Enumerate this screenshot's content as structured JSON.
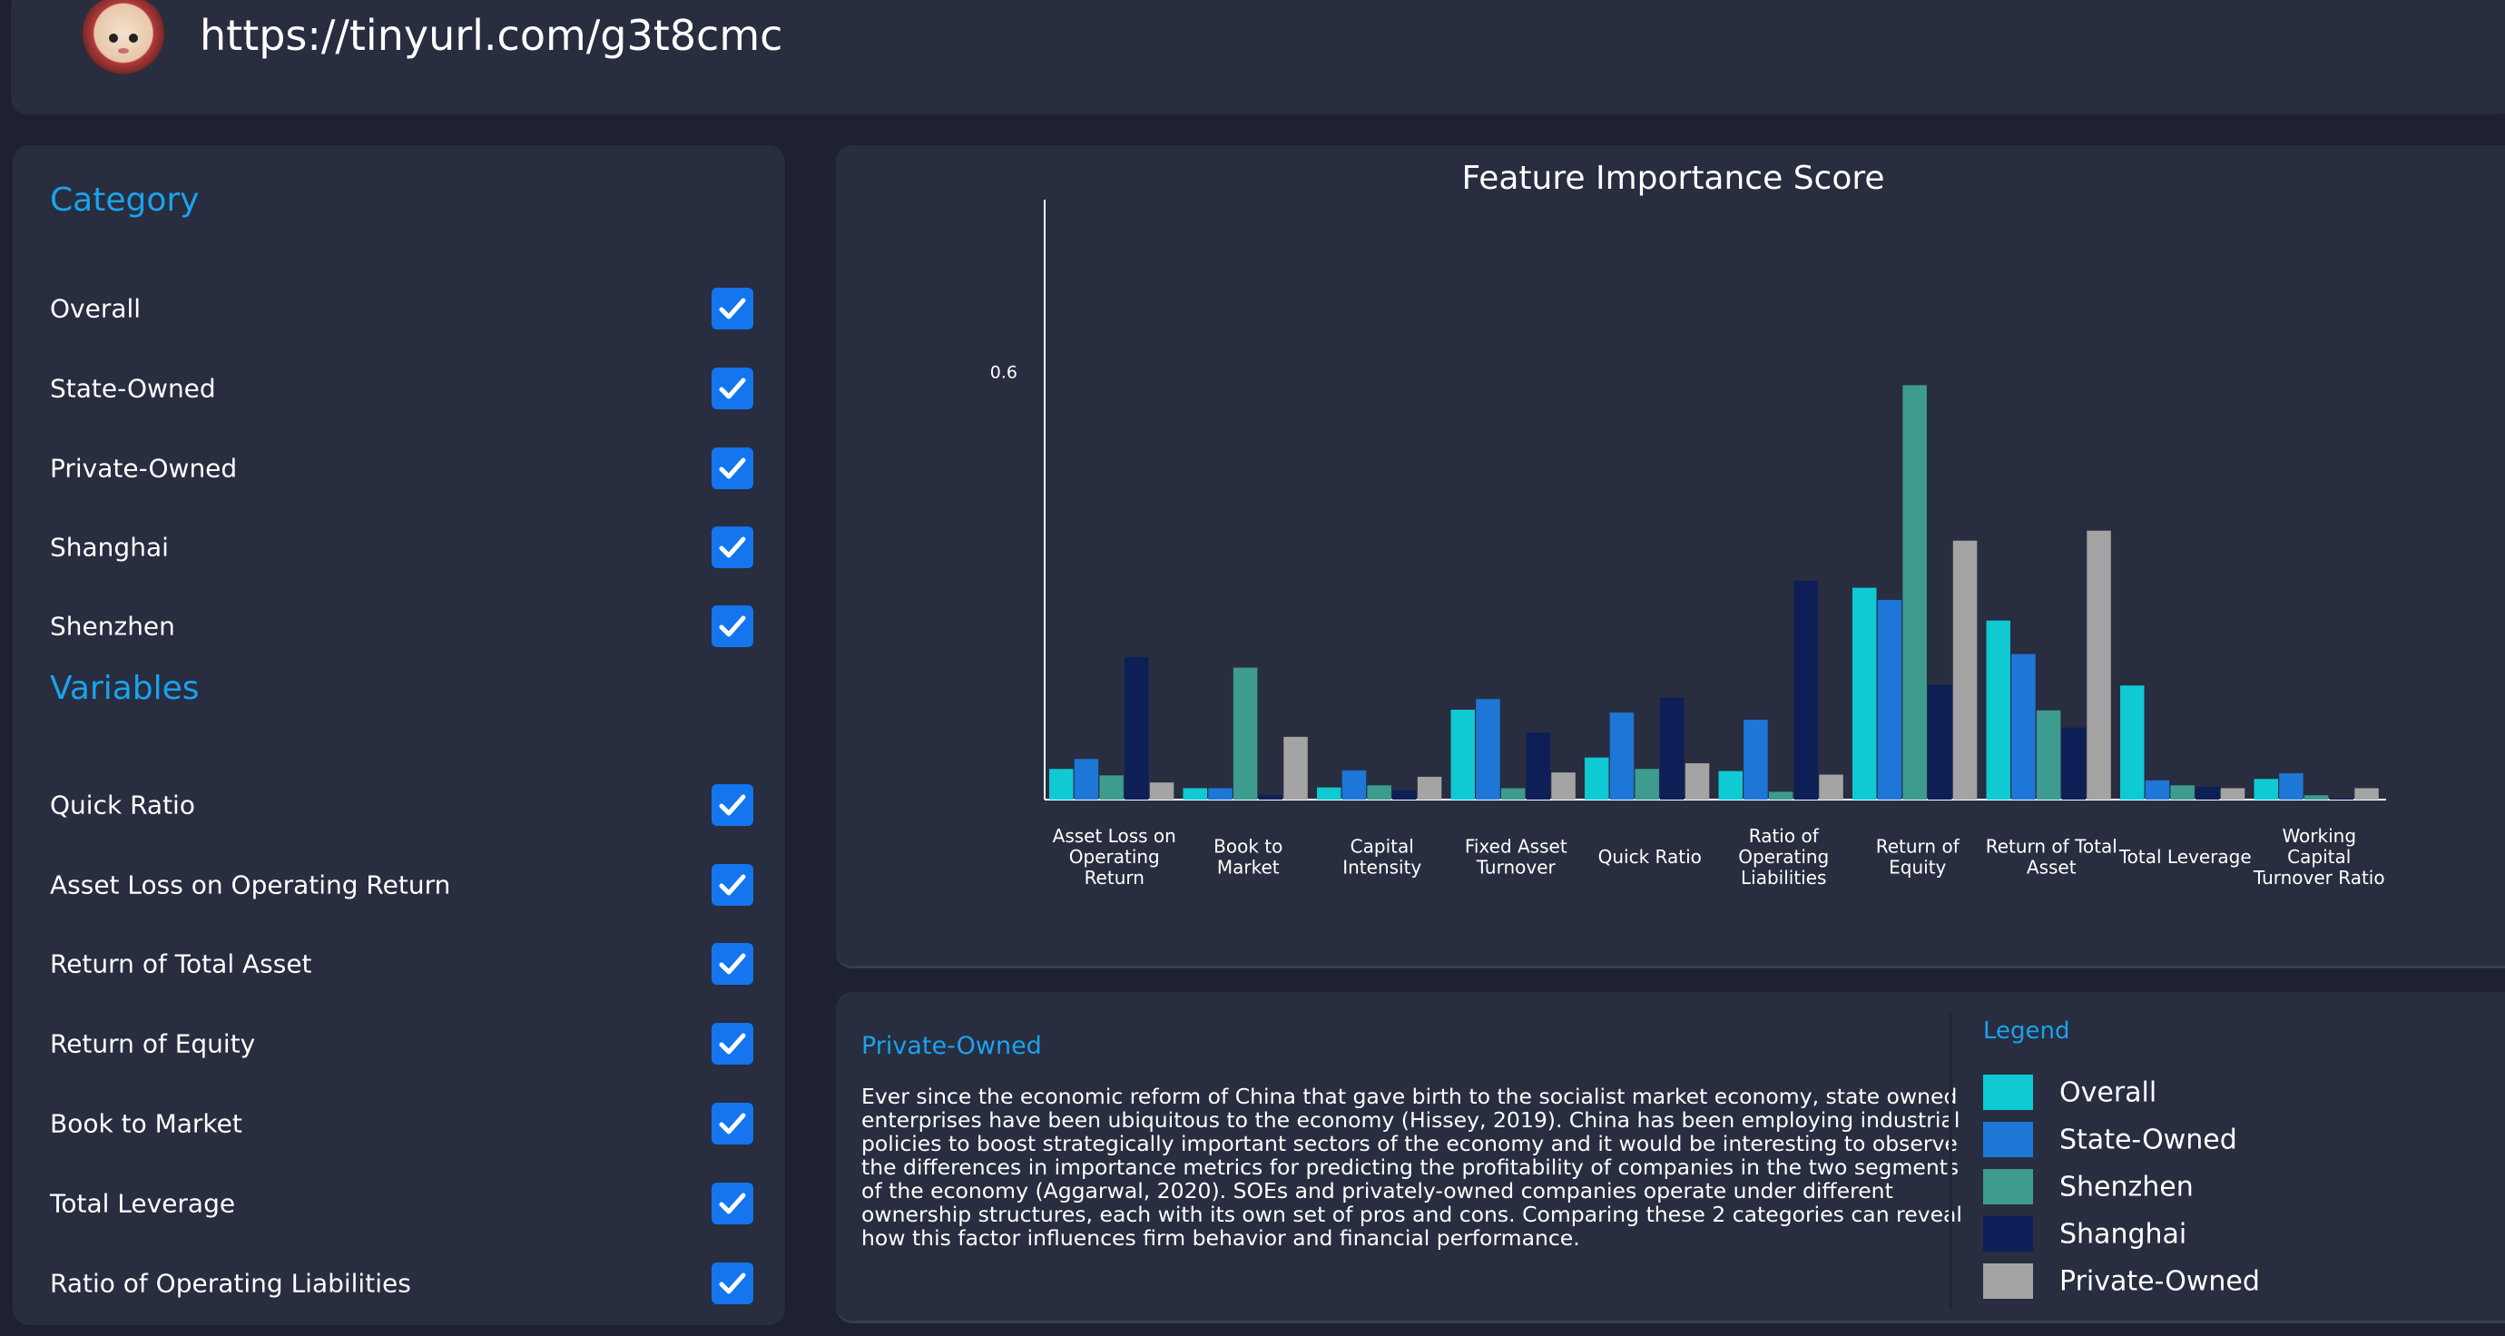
{
  "header": {
    "url": "https://tinyurl.com/g3t8cmc"
  },
  "sidebar": {
    "category_heading": "Category",
    "categories": [
      {
        "label": "Overall",
        "checked": true
      },
      {
        "label": "State-Owned",
        "checked": true
      },
      {
        "label": "Private-Owned",
        "checked": true
      },
      {
        "label": "Shanghai",
        "checked": true
      },
      {
        "label": "Shenzhen",
        "checked": true
      }
    ],
    "variables_heading": "Variables",
    "variables": [
      {
        "label": "Quick Ratio",
        "checked": true
      },
      {
        "label": "Asset Loss on Operating Return",
        "checked": true
      },
      {
        "label": "Return of Total Asset",
        "checked": true
      },
      {
        "label": "Return of Equity",
        "checked": true
      },
      {
        "label": "Book to Market",
        "checked": true
      },
      {
        "label": "Total Leverage",
        "checked": true
      },
      {
        "label": "Ratio of Operating Liabilities",
        "checked": true
      }
    ]
  },
  "colors": {
    "accent": "#1aa3ec",
    "checkbox": "#1475ef",
    "panel": "#282d40",
    "background": "#1e2230"
  },
  "chart_data": {
    "type": "bar",
    "title": "Feature Importance Score",
    "ytick_labels": [
      "0.6"
    ],
    "ylim": [
      0,
      0.64
    ],
    "categories": [
      [
        "Asset Loss on",
        "Operating",
        "Return"
      ],
      [
        "Book to",
        "Market"
      ],
      [
        "Capital",
        "Intensity"
      ],
      [
        "Fixed Asset",
        "Turnover"
      ],
      [
        "Quick Ratio"
      ],
      [
        "Ratio of",
        "Operating",
        "Liabilities"
      ],
      [
        "Return of",
        "Equity"
      ],
      [
        "Return of Total",
        "Asset"
      ],
      [
        "Total Leverage"
      ],
      [
        "Working",
        "Capital",
        "Turnover Ratio"
      ]
    ],
    "series": [
      {
        "name": "Overall",
        "color": "#0fcad2",
        "values": [
          0.043,
          0.016,
          0.017,
          0.126,
          0.059,
          0.04,
          0.297,
          0.251,
          0.16,
          0.029
        ]
      },
      {
        "name": "State-Owned",
        "color": "#1e76d6",
        "values": [
          0.057,
          0.016,
          0.041,
          0.141,
          0.122,
          0.112,
          0.28,
          0.204,
          0.027,
          0.037
        ]
      },
      {
        "name": "Shenzhen",
        "color": "#3e9b90",
        "values": [
          0.034,
          0.185,
          0.02,
          0.016,
          0.043,
          0.011,
          0.581,
          0.125,
          0.02,
          0.006
        ]
      },
      {
        "name": "Shanghai",
        "color": "#0d1f56",
        "values": [
          0.2,
          0.006,
          0.013,
          0.094,
          0.143,
          0.307,
          0.161,
          0.101,
          0.018,
          0.002
        ]
      },
      {
        "name": "Private-Owned",
        "color": "#a4a4a4",
        "values": [
          0.024,
          0.088,
          0.032,
          0.038,
          0.051,
          0.035,
          0.363,
          0.377,
          0.016,
          0.016
        ]
      }
    ],
    "grid": false,
    "legend_position": "separate-panel"
  },
  "info": {
    "title": "Private-Owned",
    "text": "Ever since the economic reform of China that gave birth to the socialist market economy, state owned enterprises have been ubiquitous to the economy (Hissey, 2019). China has been employing industrial policies to boost strategically important sectors of the economy and it would be interesting to observe the differences in importance metrics for predicting the profitability of companies in the two segments of the economy (Aggarwal, 2020). SOEs and privately-owned companies operate under different ownership structures, each with its own set of pros and cons. Comparing these 2 categories can reveal how this factor influences firm behavior and financial performance."
  },
  "legend": {
    "title": "Legend",
    "items": [
      {
        "label": "Overall",
        "color": "#0fcad2"
      },
      {
        "label": "State-Owned",
        "color": "#1e76d6"
      },
      {
        "label": "Shenzhen",
        "color": "#3e9b90"
      },
      {
        "label": "Shanghai",
        "color": "#0d1f56"
      },
      {
        "label": "Private-Owned",
        "color": "#a4a4a4"
      }
    ]
  }
}
